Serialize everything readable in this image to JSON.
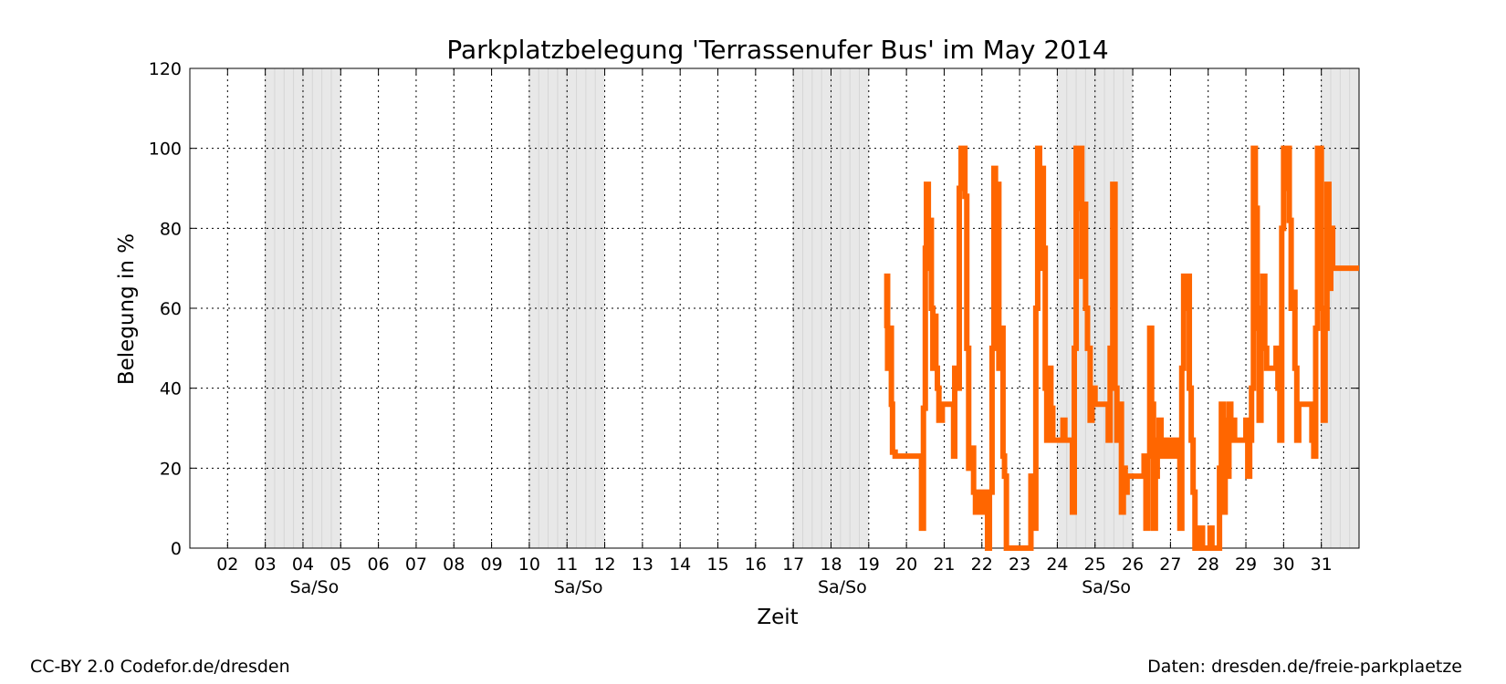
{
  "chart_data": {
    "type": "line",
    "title": "Parkplatzbelegung 'Terrassenufer Bus' im May 2014",
    "xlabel": "Zeit",
    "ylabel": "Belegung in %",
    "xlim": [
      1.0,
      32.0
    ],
    "ylim": [
      0,
      120
    ],
    "yticks": [
      0,
      20,
      40,
      60,
      80,
      100,
      120
    ],
    "xtick_labels": [
      "02",
      "03",
      "04",
      "05",
      "06",
      "07",
      "08",
      "09",
      "10",
      "11",
      "12",
      "13",
      "14",
      "15",
      "16",
      "17",
      "18",
      "19",
      "20",
      "21",
      "22",
      "23",
      "24",
      "25",
      "26",
      "27",
      "28",
      "29",
      "30",
      "31"
    ],
    "weekend_label": "Sa/So",
    "weekend_spans": [
      [
        3,
        5
      ],
      [
        10,
        12
      ],
      [
        17,
        19
      ],
      [
        24,
        26
      ],
      [
        31,
        32
      ]
    ],
    "weekend_label_centers": [
      4.3,
      11.3,
      18.3,
      25.3
    ],
    "grid": true,
    "series": [
      {
        "color": "#ff6600",
        "points": [
          [
            19.45,
            55
          ],
          [
            19.48,
            68
          ],
          [
            19.5,
            45
          ],
          [
            19.53,
            55
          ],
          [
            19.6,
            36
          ],
          [
            19.63,
            24
          ],
          [
            19.7,
            23
          ],
          [
            20.35,
            23
          ],
          [
            20.4,
            5
          ],
          [
            20.45,
            35
          ],
          [
            20.5,
            75
          ],
          [
            20.53,
            91
          ],
          [
            20.58,
            70
          ],
          [
            20.62,
            82
          ],
          [
            20.66,
            60
          ],
          [
            20.7,
            45
          ],
          [
            20.74,
            58
          ],
          [
            20.78,
            45
          ],
          [
            20.82,
            40
          ],
          [
            20.86,
            32
          ],
          [
            20.95,
            36
          ],
          [
            21.2,
            36
          ],
          [
            21.25,
            23
          ],
          [
            21.28,
            45
          ],
          [
            21.35,
            40
          ],
          [
            21.4,
            90
          ],
          [
            21.45,
            100
          ],
          [
            21.5,
            100
          ],
          [
            21.55,
            88
          ],
          [
            21.6,
            50
          ],
          [
            21.65,
            20
          ],
          [
            21.72,
            25
          ],
          [
            21.78,
            14
          ],
          [
            21.83,
            9
          ],
          [
            21.9,
            14
          ],
          [
            21.96,
            9
          ],
          [
            22.05,
            9
          ],
          [
            22.1,
            14
          ],
          [
            22.15,
            0
          ],
          [
            22.2,
            14
          ],
          [
            22.27,
            50
          ],
          [
            22.32,
            95
          ],
          [
            22.36,
            60
          ],
          [
            22.4,
            91
          ],
          [
            22.45,
            45
          ],
          [
            22.5,
            55
          ],
          [
            22.56,
            23
          ],
          [
            22.6,
            18
          ],
          [
            22.65,
            0
          ],
          [
            22.8,
            0
          ],
          [
            22.9,
            0
          ],
          [
            23.25,
            0
          ],
          [
            23.3,
            18
          ],
          [
            23.38,
            5
          ],
          [
            23.43,
            60
          ],
          [
            23.48,
            100
          ],
          [
            23.53,
            70
          ],
          [
            23.58,
            95
          ],
          [
            23.63,
            75
          ],
          [
            23.68,
            40
          ],
          [
            23.72,
            27
          ],
          [
            23.78,
            45
          ],
          [
            23.83,
            35
          ],
          [
            23.88,
            27
          ],
          [
            24.1,
            27
          ],
          [
            24.15,
            32
          ],
          [
            24.2,
            27
          ],
          [
            24.35,
            27
          ],
          [
            24.4,
            9
          ],
          [
            24.45,
            50
          ],
          [
            24.5,
            100
          ],
          [
            24.55,
            85
          ],
          [
            24.6,
            100
          ],
          [
            24.65,
            68
          ],
          [
            24.7,
            86
          ],
          [
            24.75,
            60
          ],
          [
            24.8,
            50
          ],
          [
            24.87,
            32
          ],
          [
            24.92,
            40
          ],
          [
            25.0,
            36
          ],
          [
            25.3,
            36
          ],
          [
            25.35,
            27
          ],
          [
            25.4,
            50
          ],
          [
            25.47,
            91
          ],
          [
            25.53,
            40
          ],
          [
            25.58,
            27
          ],
          [
            25.63,
            36
          ],
          [
            25.7,
            9
          ],
          [
            25.75,
            20
          ],
          [
            25.8,
            14
          ],
          [
            25.85,
            18
          ],
          [
            26.25,
            18
          ],
          [
            26.3,
            23
          ],
          [
            26.35,
            5
          ],
          [
            26.4,
            23
          ],
          [
            26.45,
            55
          ],
          [
            26.5,
            36
          ],
          [
            26.55,
            5
          ],
          [
            26.6,
            18
          ],
          [
            26.65,
            27
          ],
          [
            26.7,
            32
          ],
          [
            26.75,
            23
          ],
          [
            26.8,
            27
          ],
          [
            26.85,
            23
          ],
          [
            26.9,
            27
          ],
          [
            27.0,
            23
          ],
          [
            27.1,
            27
          ],
          [
            27.2,
            23
          ],
          [
            27.25,
            5
          ],
          [
            27.3,
            45
          ],
          [
            27.35,
            68
          ],
          [
            27.4,
            60
          ],
          [
            27.45,
            68
          ],
          [
            27.5,
            40
          ],
          [
            27.55,
            27
          ],
          [
            27.6,
            14
          ],
          [
            27.65,
            0
          ],
          [
            27.7,
            5
          ],
          [
            27.75,
            0
          ],
          [
            27.8,
            5
          ],
          [
            27.85,
            0
          ],
          [
            28.0,
            0
          ],
          [
            28.05,
            5
          ],
          [
            28.1,
            0
          ],
          [
            28.25,
            0
          ],
          [
            28.3,
            20
          ],
          [
            28.35,
            36
          ],
          [
            28.4,
            9
          ],
          [
            28.45,
            32
          ],
          [
            28.5,
            18
          ],
          [
            28.55,
            36
          ],
          [
            28.6,
            27
          ],
          [
            28.65,
            32
          ],
          [
            28.7,
            27
          ],
          [
            28.95,
            27
          ],
          [
            29.0,
            32
          ],
          [
            29.05,
            18
          ],
          [
            29.1,
            27
          ],
          [
            29.15,
            40
          ],
          [
            29.2,
            100
          ],
          [
            29.25,
            85
          ],
          [
            29.3,
            55
          ],
          [
            29.35,
            32
          ],
          [
            29.4,
            60
          ],
          [
            29.45,
            68
          ],
          [
            29.5,
            50
          ],
          [
            29.55,
            45
          ],
          [
            29.75,
            45
          ],
          [
            29.8,
            50
          ],
          [
            29.85,
            40
          ],
          [
            29.9,
            27
          ],
          [
            29.95,
            80
          ],
          [
            30.0,
            100
          ],
          [
            30.05,
            90
          ],
          [
            30.1,
            100
          ],
          [
            30.15,
            82
          ],
          [
            30.2,
            60
          ],
          [
            30.25,
            64
          ],
          [
            30.3,
            45
          ],
          [
            30.35,
            27
          ],
          [
            30.4,
            36
          ],
          [
            30.7,
            36
          ],
          [
            30.75,
            27
          ],
          [
            30.8,
            23
          ],
          [
            30.85,
            55
          ],
          [
            30.9,
            100
          ],
          [
            30.95,
            100
          ],
          [
            31.0,
            60
          ],
          [
            31.05,
            32
          ],
          [
            31.1,
            55
          ],
          [
            31.15,
            91
          ],
          [
            31.2,
            65
          ],
          [
            31.25,
            80
          ],
          [
            31.3,
            70
          ]
        ]
      }
    ]
  },
  "footer": {
    "left": "CC-BY 2.0 Codefor.de/dresden",
    "right": "Daten: dresden.de/freie-parkplaetze"
  }
}
